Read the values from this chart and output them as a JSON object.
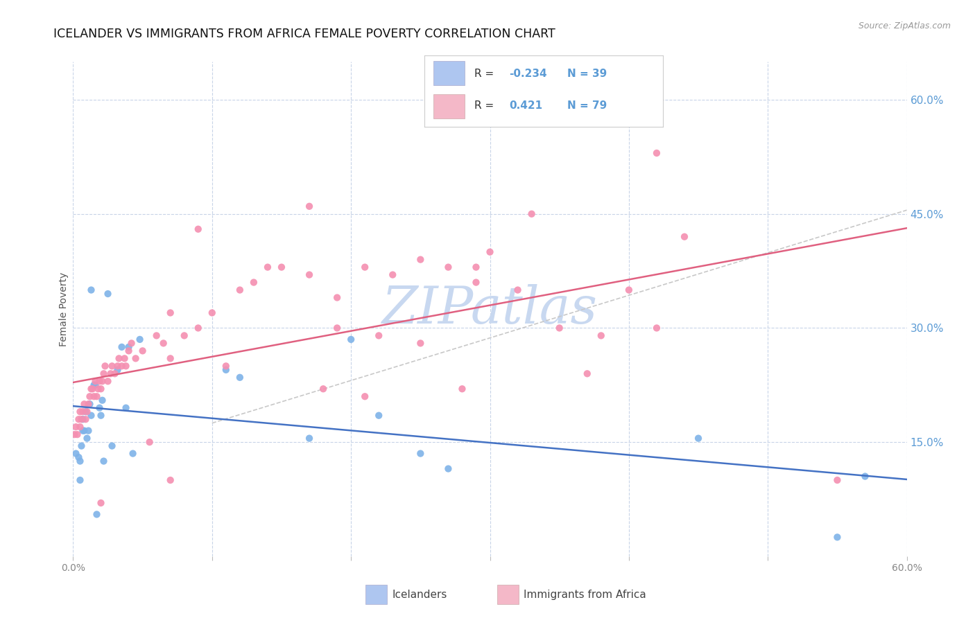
{
  "title": "ICELANDER VS IMMIGRANTS FROM AFRICA FEMALE POVERTY CORRELATION CHART",
  "source": "Source: ZipAtlas.com",
  "ylabel": "Female Poverty",
  "xlim": [
    0.0,
    0.6
  ],
  "ylim": [
    0.0,
    0.65
  ],
  "xtick_positions": [
    0.0,
    0.1,
    0.2,
    0.3,
    0.4,
    0.5,
    0.6
  ],
  "xticklabels": [
    "0.0%",
    "",
    "",
    "",
    "",
    "",
    "60.0%"
  ],
  "right_ytick_positions": [
    0.15,
    0.3,
    0.45,
    0.6
  ],
  "right_yticklabels": [
    "15.0%",
    "30.0%",
    "45.0%",
    "60.0%"
  ],
  "legend_r1": "R = ",
  "legend_r1_val": "-0.234",
  "legend_r1_n": "N = 39",
  "legend_r2": "R =  ",
  "legend_r2_val": "0.421",
  "legend_r2_n": "N = 79",
  "watermark": "ZIPatlas",
  "watermark_color": "#c8d8f0",
  "icelanders_color": "#7fb3e8",
  "immigrants_color": "#f48fb1",
  "icelanders_line_color": "#4472c4",
  "immigrants_line_color": "#e06080",
  "dashed_line_color": "#c8c8c8",
  "background_color": "#ffffff",
  "grid_color": "#c8d4e8",
  "blue_text_color": "#5b9bd5",
  "red_text_color": "#e05060",
  "legend_box_color1": "#aec6f0",
  "legend_box_color2": "#f4b8c8",
  "icelanders_x": [
    0.002,
    0.004,
    0.005,
    0.005,
    0.006,
    0.007,
    0.007,
    0.008,
    0.009,
    0.01,
    0.011,
    0.012,
    0.013,
    0.013,
    0.015,
    0.016,
    0.017,
    0.019,
    0.02,
    0.021,
    0.022,
    0.025,
    0.028,
    0.032,
    0.035,
    0.038,
    0.04,
    0.043,
    0.048,
    0.11,
    0.12,
    0.17,
    0.2,
    0.22,
    0.25,
    0.27,
    0.45,
    0.55,
    0.57
  ],
  "icelanders_y": [
    0.135,
    0.13,
    0.125,
    0.1,
    0.145,
    0.165,
    0.18,
    0.165,
    0.19,
    0.155,
    0.165,
    0.2,
    0.185,
    0.35,
    0.225,
    0.225,
    0.055,
    0.195,
    0.185,
    0.205,
    0.125,
    0.345,
    0.145,
    0.245,
    0.275,
    0.195,
    0.275,
    0.135,
    0.285,
    0.245,
    0.235,
    0.155,
    0.285,
    0.185,
    0.135,
    0.115,
    0.155,
    0.025,
    0.105
  ],
  "immigrants_x": [
    0.001,
    0.002,
    0.003,
    0.004,
    0.005,
    0.005,
    0.006,
    0.007,
    0.008,
    0.009,
    0.01,
    0.011,
    0.012,
    0.013,
    0.014,
    0.015,
    0.016,
    0.017,
    0.018,
    0.019,
    0.02,
    0.021,
    0.022,
    0.023,
    0.025,
    0.027,
    0.028,
    0.03,
    0.032,
    0.033,
    0.035,
    0.037,
    0.038,
    0.04,
    0.042,
    0.045,
    0.05,
    0.055,
    0.06,
    0.065,
    0.07,
    0.08,
    0.09,
    0.1,
    0.12,
    0.13,
    0.15,
    0.17,
    0.19,
    0.21,
    0.23,
    0.25,
    0.27,
    0.29,
    0.3,
    0.32,
    0.35,
    0.38,
    0.4,
    0.42,
    0.44,
    0.28,
    0.19,
    0.09,
    0.07,
    0.11,
    0.17,
    0.22,
    0.37,
    0.33,
    0.29,
    0.25,
    0.21,
    0.42,
    0.02,
    0.14,
    0.18,
    0.07,
    0.55
  ],
  "immigrants_y": [
    0.16,
    0.17,
    0.16,
    0.18,
    0.17,
    0.19,
    0.18,
    0.19,
    0.2,
    0.18,
    0.19,
    0.2,
    0.21,
    0.22,
    0.22,
    0.21,
    0.23,
    0.21,
    0.22,
    0.23,
    0.22,
    0.23,
    0.24,
    0.25,
    0.23,
    0.24,
    0.25,
    0.24,
    0.25,
    0.26,
    0.25,
    0.26,
    0.25,
    0.27,
    0.28,
    0.26,
    0.27,
    0.15,
    0.29,
    0.28,
    0.32,
    0.29,
    0.3,
    0.32,
    0.35,
    0.36,
    0.38,
    0.37,
    0.34,
    0.38,
    0.37,
    0.39,
    0.38,
    0.38,
    0.4,
    0.35,
    0.3,
    0.29,
    0.35,
    0.3,
    0.42,
    0.22,
    0.3,
    0.43,
    0.26,
    0.25,
    0.46,
    0.29,
    0.24,
    0.45,
    0.36,
    0.28,
    0.21,
    0.53,
    0.07,
    0.38,
    0.22,
    0.1,
    0.1
  ],
  "footer_labels": [
    "Icelanders",
    "Immigrants from Africa"
  ]
}
